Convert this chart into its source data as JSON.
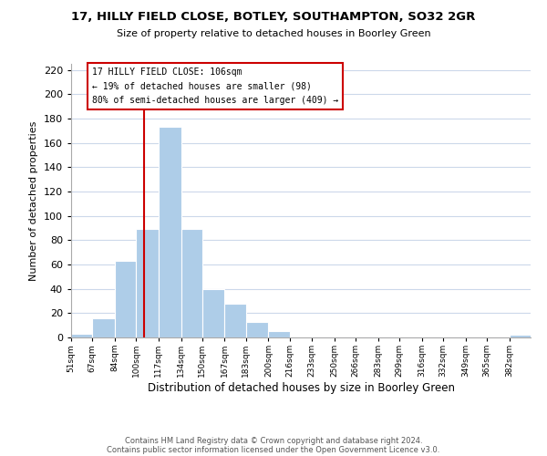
{
  "title": "17, HILLY FIELD CLOSE, BOTLEY, SOUTHAMPTON, SO32 2GR",
  "subtitle": "Size of property relative to detached houses in Boorley Green",
  "xlabel": "Distribution of detached houses by size in Boorley Green",
  "ylabel": "Number of detached properties",
  "bar_lefts": [
    51,
    67,
    84,
    100,
    117,
    134,
    150,
    167,
    183,
    200,
    216,
    233,
    250,
    266,
    283,
    299,
    316,
    332,
    349,
    365,
    382
  ],
  "bar_widths": [
    16,
    17,
    16,
    17,
    17,
    16,
    17,
    16,
    17,
    16,
    17,
    17,
    16,
    17,
    16,
    17,
    16,
    17,
    16,
    17,
    16
  ],
  "bar_heights": [
    3,
    16,
    63,
    89,
    173,
    89,
    40,
    28,
    13,
    5,
    1,
    0,
    0,
    0,
    0,
    0,
    0,
    0,
    0,
    0,
    2
  ],
  "bar_color": "#aecde8",
  "bar_edgecolor": "#aecde8",
  "vline_x": 106,
  "vline_color": "#cc0000",
  "annotation_text_line1": "17 HILLY FIELD CLOSE: 106sqm",
  "annotation_text_line2": "← 19% of detached houses are smaller (98)",
  "annotation_text_line3": "80% of semi-detached houses are larger (409) →",
  "box_edgecolor": "#cc0000",
  "ylim_max": 225,
  "yticks": [
    0,
    20,
    40,
    60,
    80,
    100,
    120,
    140,
    160,
    180,
    200,
    220
  ],
  "xtick_positions": [
    51,
    67,
    84,
    100,
    117,
    134,
    150,
    167,
    183,
    200,
    216,
    233,
    250,
    266,
    283,
    299,
    316,
    332,
    349,
    365,
    382
  ],
  "xtick_labels": [
    "51sqm",
    "67sqm",
    "84sqm",
    "100sqm",
    "117sqm",
    "134sqm",
    "150sqm",
    "167sqm",
    "183sqm",
    "200sqm",
    "216sqm",
    "233sqm",
    "250sqm",
    "266sqm",
    "283sqm",
    "299sqm",
    "316sqm",
    "332sqm",
    "349sqm",
    "365sqm",
    "382sqm"
  ],
  "footer_line1": "Contains HM Land Registry data © Crown copyright and database right 2024.",
  "footer_line2": "Contains public sector information licensed under the Open Government Licence v3.0.",
  "background_color": "#ffffff",
  "grid_color": "#ccd8ea",
  "xlim_left": 51,
  "xlim_right": 398
}
